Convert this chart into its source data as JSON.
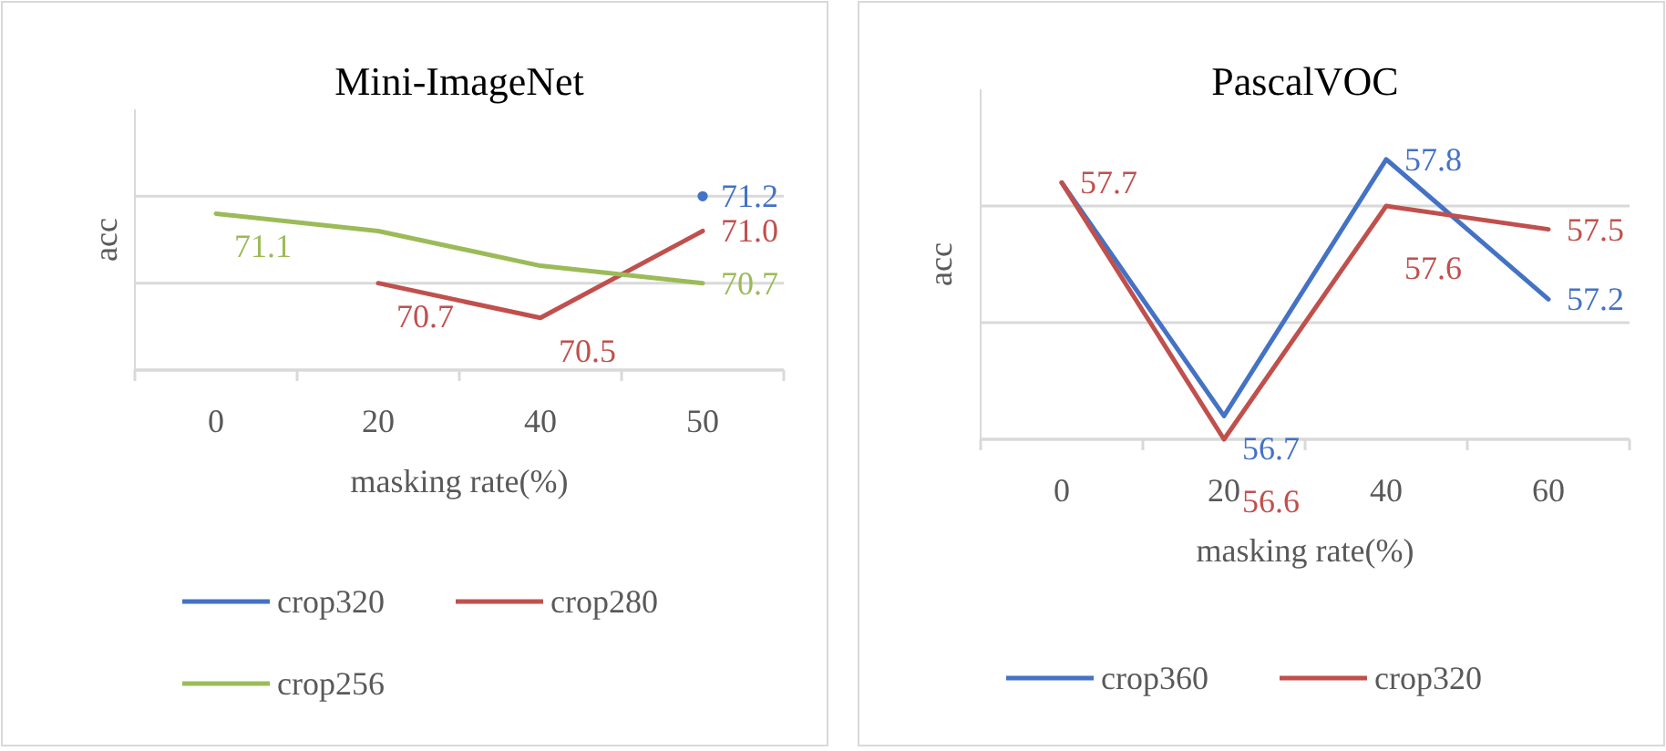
{
  "chart_data": [
    {
      "type": "line",
      "title": "Mini-ImageNet",
      "xlabel": "masking rate(%)",
      "ylabel": "acc",
      "categories": [
        "0",
        "20",
        "40",
        "50"
      ],
      "ylim": [
        70.2,
        71.7
      ],
      "yticks": [
        {
          "value": 70.2,
          "label": null
        },
        {
          "value": 70.7,
          "label": null
        },
        {
          "value": 71.2,
          "label": null
        }
      ],
      "tick_labels": "x",
      "grid": "y",
      "legend": "bottom",
      "marker": "none",
      "line_style": "solid",
      "series": [
        {
          "name": "crop320",
          "color": "#4472c4",
          "marker": "circle",
          "values": [
            null,
            null,
            null,
            71.2
          ],
          "value_labels": [
            null,
            null,
            null,
            "71.2"
          ]
        },
        {
          "name": "crop280",
          "color": "#c0504d",
          "values": [
            null,
            70.7,
            70.5,
            71.0
          ],
          "value_labels": [
            null,
            "70.7",
            "70.5",
            "71.0"
          ]
        },
        {
          "name": "crop256",
          "color": "#9bbb59",
          "values": [
            71.1,
            71.0,
            70.8,
            70.7
          ],
          "value_labels": [
            "71.1",
            null,
            null,
            "70.7"
          ]
        }
      ]
    },
    {
      "type": "line",
      "title": "PascalVOC",
      "xlabel": "masking rate(%)",
      "ylabel": "acc",
      "categories": [
        "0",
        "20",
        "40",
        "60"
      ],
      "ylim": [
        56.6,
        58.1
      ],
      "yticks": [
        {
          "value": 56.6,
          "label": null
        },
        {
          "value": 57.1,
          "label": null
        },
        {
          "value": 57.6,
          "label": null
        }
      ],
      "tick_labels": "x",
      "grid": "y",
      "legend": "bottom",
      "marker": "none",
      "line_style": "solid",
      "series": [
        {
          "name": "crop360",
          "color": "#4472c4",
          "values": [
            57.7,
            56.7,
            57.8,
            57.2
          ],
          "value_labels": [
            null,
            "56.7",
            "57.8",
            "57.2"
          ]
        },
        {
          "name": "crop320",
          "color": "#c0504d",
          "values": [
            57.7,
            56.6,
            57.6,
            57.5
          ],
          "value_labels": [
            "57.7",
            "56.6",
            "57.6",
            "57.5"
          ]
        }
      ]
    }
  ]
}
